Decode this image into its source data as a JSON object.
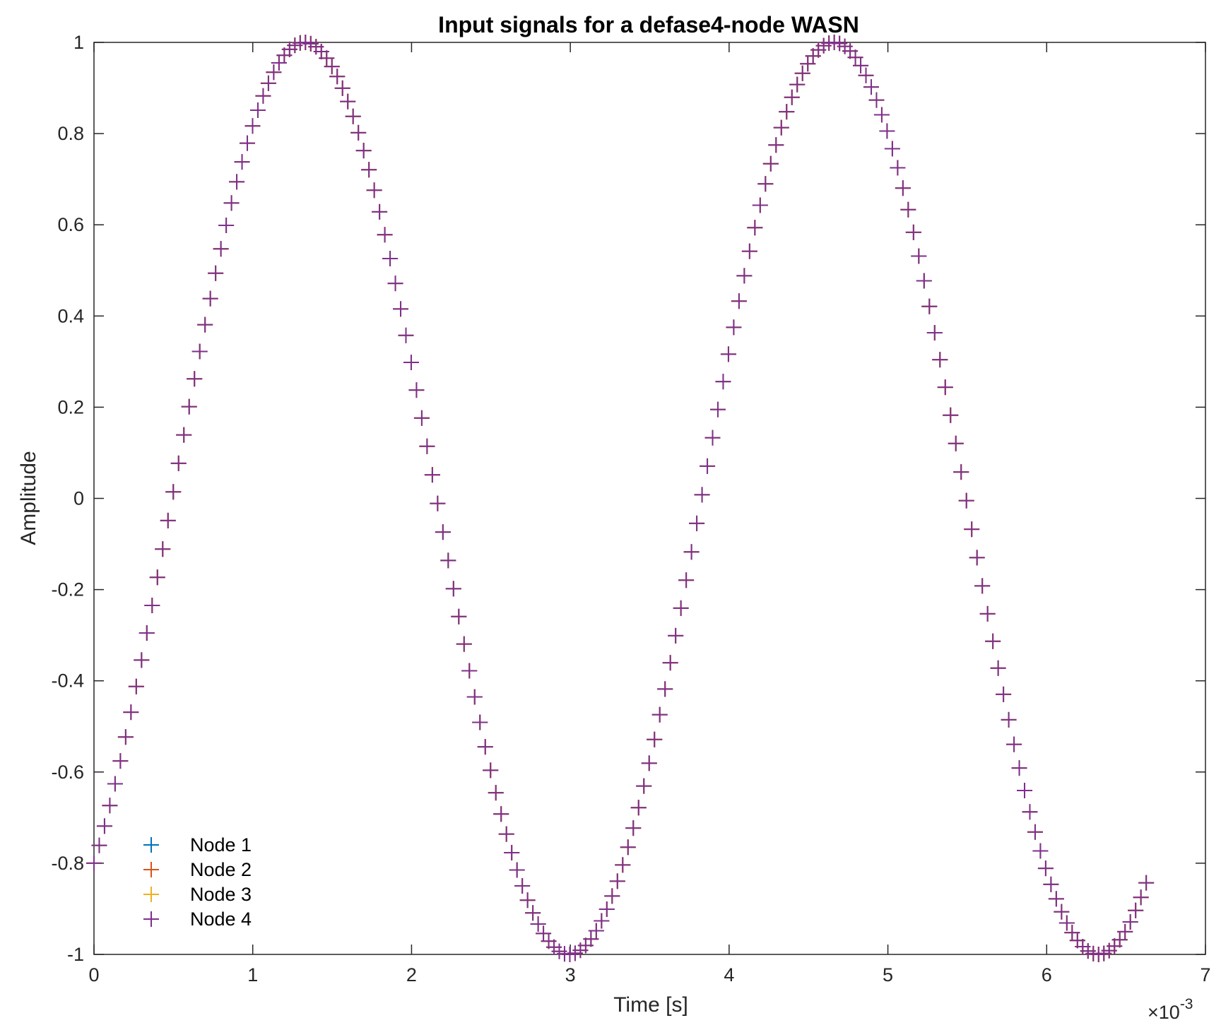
{
  "chart_data": {
    "type": "scatter",
    "title": "Input signals for a defase4-node WASN",
    "xlabel": "Time [s]",
    "ylabel": "Amplitude",
    "x_exponent_label": "×10",
    "x_exponent_power": "-3",
    "xlim": [
      0,
      7
    ],
    "ylim": [
      -1,
      1
    ],
    "xticks": [
      "0",
      "1",
      "2",
      "3",
      "4",
      "5",
      "6",
      "7"
    ],
    "yticks": [
      "-1",
      "-0.8",
      "-0.6",
      "-0.4",
      "-0.2",
      "0",
      "0.2",
      "0.4",
      "0.6",
      "0.8",
      "1"
    ],
    "grid": false,
    "legend_position": "bottom-left",
    "marker": "+",
    "series": [
      {
        "name": "Node 1",
        "color": "#0072BD"
      },
      {
        "name": "Node 2",
        "color": "#D95319"
      },
      {
        "name": "Node 3",
        "color": "#EDB120"
      },
      {
        "name": "Node 4",
        "color": "#7E2F8E"
      }
    ],
    "signal": {
      "x_start": 0.0,
      "x_end": 6.65,
      "x_step": 0.0333,
      "amplitude": 1.0,
      "frequency_per_unit": 0.3,
      "phase_rad": -0.9273,
      "note_units": "x in units of 1e-3 s; y = amplitude * sin(2*pi*frequency*x + phase)"
    }
  }
}
